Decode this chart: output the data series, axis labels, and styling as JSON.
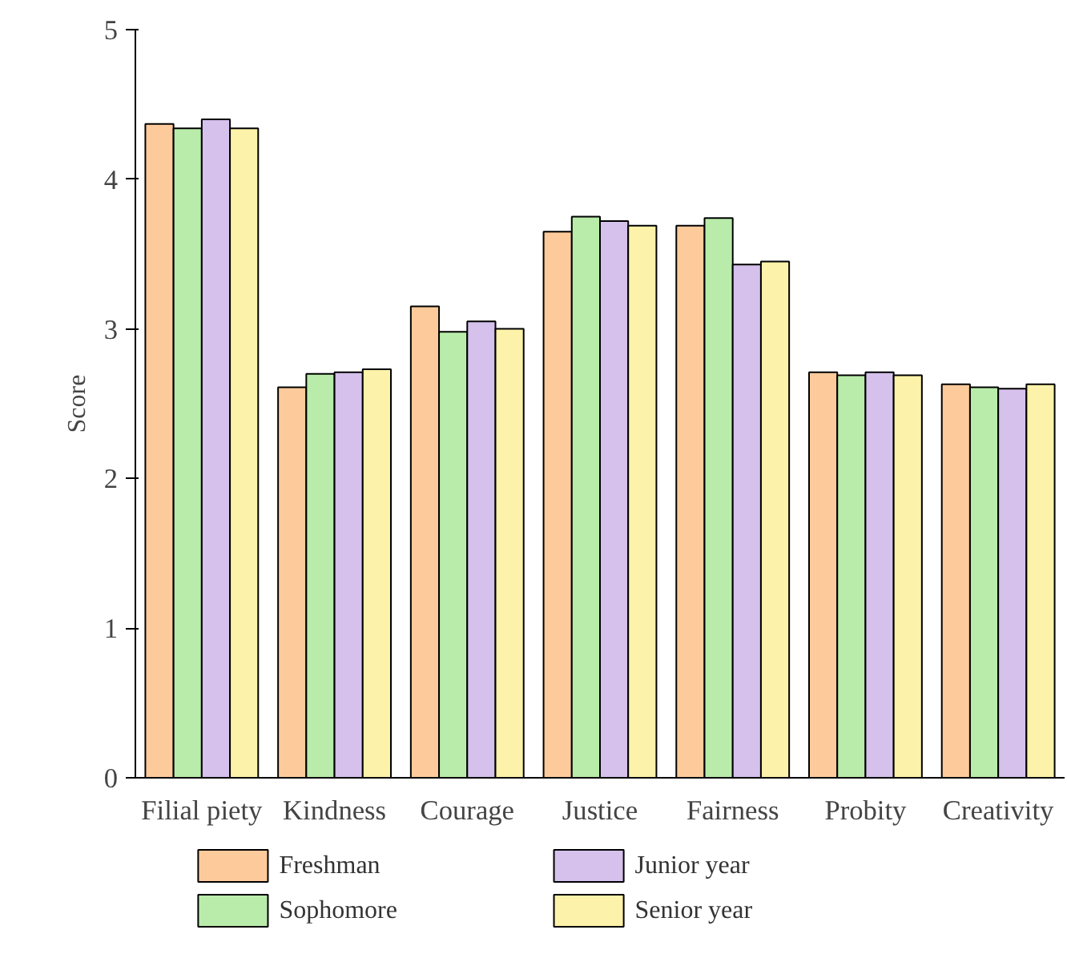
{
  "chart_data": {
    "type": "bar",
    "ylabel": "Score",
    "categories": [
      "Filial piety",
      "Kindness",
      "Courage",
      "Justice",
      "Fairness",
      "Probity",
      "Creativity"
    ],
    "series": [
      {
        "name": "Freshman",
        "color": "#fdcb9b",
        "values": [
          4.37,
          2.61,
          3.15,
          3.65,
          3.69,
          2.71,
          2.63
        ]
      },
      {
        "name": "Sophomore",
        "color": "#b9ecaa",
        "values": [
          4.34,
          2.7,
          2.98,
          3.75,
          3.74,
          2.69,
          2.61
        ]
      },
      {
        "name": "Junior year",
        "color": "#d5c1ec",
        "values": [
          4.4,
          2.71,
          3.05,
          3.72,
          3.43,
          2.71,
          2.6
        ]
      },
      {
        "name": "Senior year",
        "color": "#fdf2a9",
        "values": [
          4.34,
          2.73,
          3.0,
          3.69,
          3.45,
          2.69,
          2.63
        ]
      }
    ],
    "ylim": [
      0,
      5
    ],
    "yticks": [
      0,
      1,
      2,
      3,
      4,
      5
    ],
    "grid": false,
    "legend": "bottom"
  }
}
